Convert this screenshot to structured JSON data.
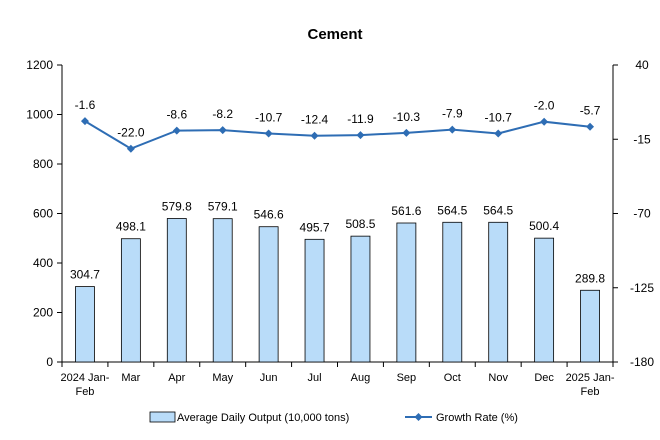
{
  "chart_data": {
    "type": "bar",
    "title": "Cement",
    "categories": [
      [
        "2024 Jan-",
        "Feb"
      ],
      [
        "Mar"
      ],
      [
        "Apr"
      ],
      [
        "May"
      ],
      [
        "Jun"
      ],
      [
        "Jul"
      ],
      [
        "Aug"
      ],
      [
        "Sep"
      ],
      [
        "Oct"
      ],
      [
        "Nov"
      ],
      [
        "Dec"
      ],
      [
        "2025 Jan-",
        "Feb"
      ]
    ],
    "series": [
      {
        "name": "Average Daily Output (10,000 tons)",
        "type": "bar",
        "axis": "left",
        "values": [
          304.7,
          498.1,
          579.8,
          579.1,
          546.6,
          495.7,
          508.5,
          561.6,
          564.5,
          564.5,
          500.4,
          289.8
        ],
        "color": "#b9dcf9"
      },
      {
        "name": "Growth Rate (%)",
        "type": "line",
        "axis": "right",
        "values": [
          -1.6,
          -22.0,
          -8.6,
          -8.2,
          -10.7,
          -12.4,
          -11.9,
          -10.3,
          -7.9,
          -10.7,
          -2.0,
          -5.7
        ],
        "color": "#2e6db4"
      }
    ],
    "y_left": {
      "min": 0,
      "max": 1200,
      "ticks": [
        0,
        200,
        400,
        600,
        800,
        1000,
        1200
      ]
    },
    "y_right": {
      "min": -180,
      "max": 40,
      "ticks": [
        -180,
        -125,
        -70,
        -15,
        40
      ]
    },
    "grid": false,
    "legend": "bottom"
  }
}
